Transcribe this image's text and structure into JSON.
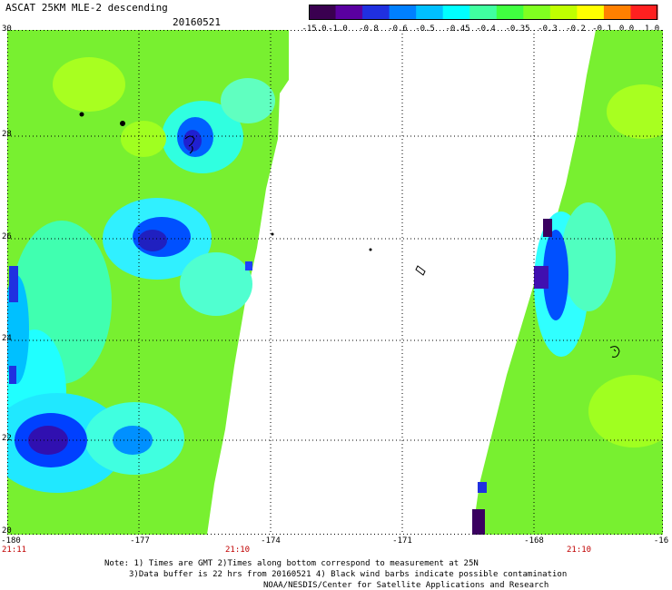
{
  "header": {
    "title": "ASCAT 25KM MLE-2 descending",
    "date": "20160521"
  },
  "colorbar": {
    "labels": [
      "-15.0",
      "-1.0",
      "-0.8",
      "-0.6",
      "-0.5",
      "-0.45",
      "-0.4",
      "-0.35",
      "-0.3",
      "-0.2",
      "-0.1",
      "0.0",
      "1.0"
    ],
    "colors": [
      "#3a0050",
      "#5a00a0",
      "#2030e0",
      "#0080ff",
      "#00c0ff",
      "#00ffff",
      "#40ffa0",
      "#40ff40",
      "#80ff20",
      "#c0ff00",
      "#ffff00",
      "#ff8000",
      "#ff2020"
    ]
  },
  "axes": {
    "y_ticks": [
      "30",
      "28",
      "26",
      "24",
      "22",
      "20"
    ],
    "x_ticks": [
      "-180",
      "-177",
      "-174",
      "-171",
      "-168",
      "-16"
    ],
    "lat_range": [
      20,
      30
    ],
    "lon_range": [
      -180,
      -165
    ]
  },
  "times": {
    "left": "21:11",
    "center": "21:10",
    "right": "21:10"
  },
  "notes": {
    "line1": "Note: 1) Times are GMT 2)Times along bottom correspond to measurement at 25N",
    "line2": "3)Data buffer is 22 hrs from 20160521 4) Black wind barbs indicate possible contamination",
    "line3": "NOAA/NESDIS/Center for Satellite Applications and Research"
  }
}
